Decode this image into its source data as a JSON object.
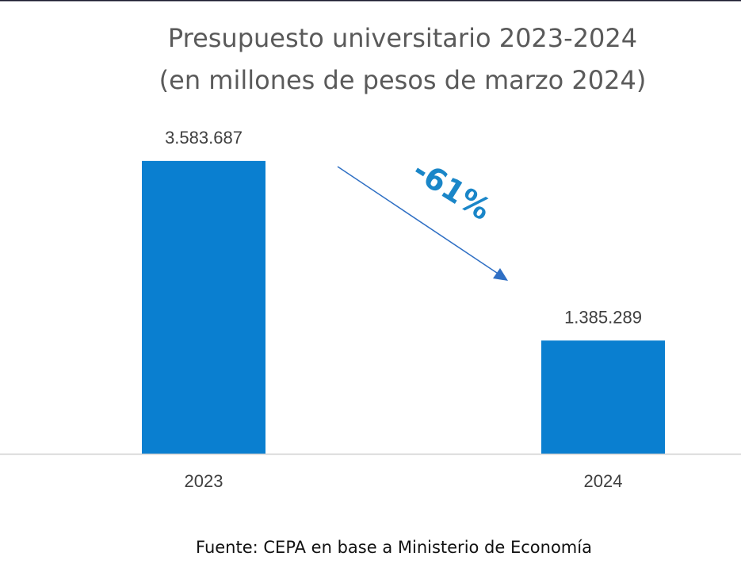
{
  "chart_data": {
    "type": "bar",
    "title": [
      "Presupuesto universitario 2023-2024",
      "(en millones de pesos de marzo 2024)"
    ],
    "categories": [
      "2023",
      "2024"
    ],
    "values": [
      3583687,
      1385289
    ],
    "data_labels": [
      "3.583.687",
      "1.385.289"
    ],
    "xlabel": "",
    "ylabel": "",
    "grid": false,
    "bar_color": "#0a7fd0",
    "annotation": {
      "text": "-61%",
      "color": "#1a86c8",
      "arrow": "from 2023 bar down to 2024 bar"
    },
    "source": "Fuente: CEPA en base a Ministerio de Economía"
  }
}
